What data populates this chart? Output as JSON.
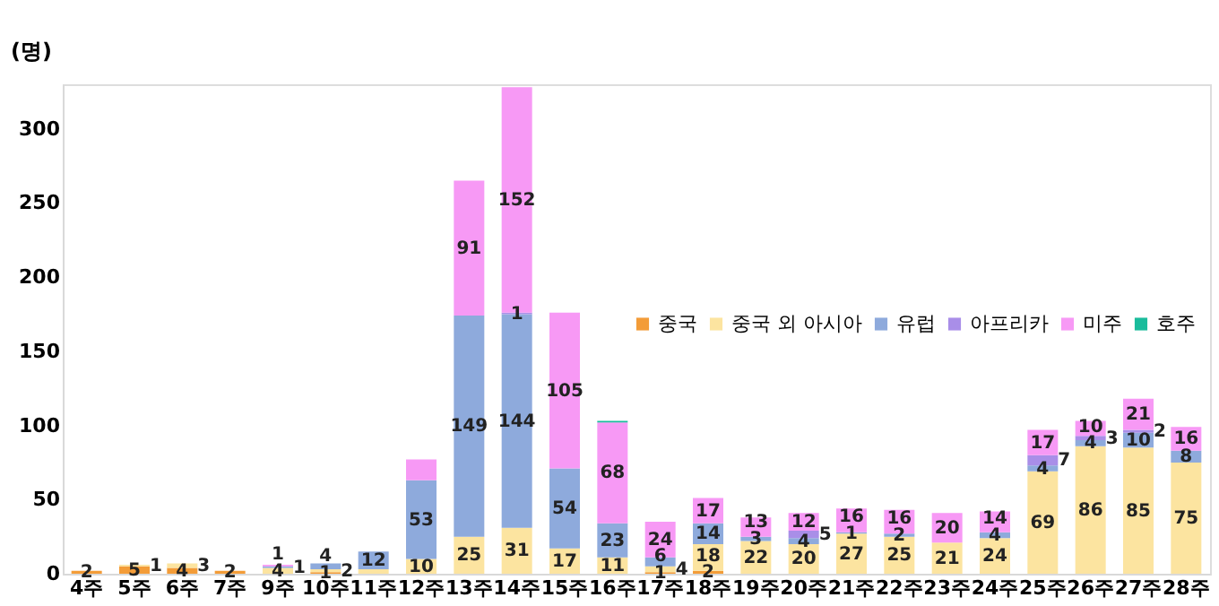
{
  "chart_data": {
    "type": "bar",
    "stacked": true,
    "ylabel": "(명)",
    "ylim": [
      0,
      330
    ],
    "yticks": [
      0,
      50,
      100,
      150,
      200,
      250,
      300
    ],
    "grid": false,
    "legend": "right",
    "categories": [
      "4주",
      "5주",
      "6주",
      "7주",
      "9주",
      "10주",
      "11주",
      "12주",
      "13주",
      "14주",
      "15주",
      "16주",
      "17주",
      "18주",
      "19주",
      "20주",
      "21주",
      "22주",
      "23주",
      "24주",
      "25주",
      "26주",
      "27주",
      "28주"
    ],
    "series": [
      {
        "name": "중국",
        "color": "#f39c38",
        "values": [
          2,
          5,
          4,
          2,
          0,
          1,
          0,
          0,
          0,
          0,
          0,
          0,
          1,
          2,
          0,
          0,
          0,
          0,
          0,
          0,
          0,
          0,
          0,
          0
        ],
        "value_labels": [
          "2",
          "5",
          "4",
          "2",
          null,
          "1",
          null,
          null,
          null,
          null,
          null,
          null,
          "1",
          "2",
          null,
          null,
          null,
          null,
          null,
          null,
          null,
          null,
          null,
          null
        ]
      },
      {
        "name": "중국 외 아시아",
        "color": "#fce4a0",
        "values": [
          0,
          1,
          3,
          0,
          4,
          2,
          3,
          10,
          25,
          31,
          17,
          11,
          4,
          18,
          22,
          20,
          27,
          25,
          21,
          24,
          69,
          86,
          85,
          75
        ],
        "value_labels": [
          null,
          "1",
          "3",
          null,
          "4",
          "2",
          null,
          "10",
          "25",
          "31",
          "17",
          "11",
          "4",
          "18",
          "22",
          "20",
          "27",
          "25",
          "21",
          "24",
          "69",
          "86",
          "85",
          "75"
        ]
      },
      {
        "name": "유럽",
        "color": "#8eaadc",
        "values": [
          0,
          0,
          0,
          0,
          1,
          4,
          12,
          53,
          149,
          144,
          54,
          23,
          6,
          14,
          3,
          4,
          1,
          2,
          0,
          4,
          4,
          4,
          10,
          8
        ],
        "value_labels": [
          null,
          null,
          null,
          null,
          "1",
          "4",
          "12",
          "53",
          "149",
          "144",
          "54",
          "23",
          "6",
          "14",
          "3",
          "4",
          "1",
          "2",
          null,
          "4",
          "4",
          "4",
          "10",
          "8"
        ]
      },
      {
        "name": "아프리카",
        "color": "#a98ee8",
        "values": [
          0,
          0,
          0,
          0,
          0,
          0,
          0,
          0,
          0,
          1,
          0,
          0,
          0,
          0,
          0,
          5,
          0,
          0,
          0,
          0,
          7,
          3,
          2,
          0
        ],
        "value_labels": [
          null,
          null,
          null,
          null,
          null,
          null,
          null,
          null,
          null,
          "1",
          null,
          null,
          null,
          null,
          null,
          "5",
          null,
          null,
          null,
          null,
          "7",
          "3",
          "2",
          null
        ]
      },
      {
        "name": "미주",
        "color": "#f799f5",
        "values": [
          0,
          0,
          0,
          0,
          1,
          0,
          0,
          14,
          91,
          152,
          105,
          68,
          24,
          17,
          13,
          12,
          16,
          16,
          20,
          14,
          17,
          10,
          21,
          16
        ],
        "value_labels": [
          null,
          null,
          null,
          null,
          "1",
          null,
          null,
          null,
          "91",
          "152",
          "105",
          "68",
          "24",
          "17",
          "13",
          "12",
          "16",
          "16",
          "20",
          "14",
          "17",
          "10",
          "21",
          "16"
        ]
      },
      {
        "name": "호주",
        "color": "#1abc9c",
        "values": [
          0,
          0,
          0,
          0,
          0,
          0,
          0,
          0,
          0,
          0,
          0,
          1,
          0,
          0,
          0,
          0,
          0,
          0,
          0,
          0,
          0,
          0,
          0,
          0
        ],
        "value_labels": [
          null,
          null,
          null,
          null,
          null,
          null,
          null,
          null,
          null,
          null,
          null,
          null,
          null,
          null,
          null,
          null,
          null,
          null,
          null,
          null,
          null,
          null,
          null,
          null
        ]
      }
    ]
  }
}
